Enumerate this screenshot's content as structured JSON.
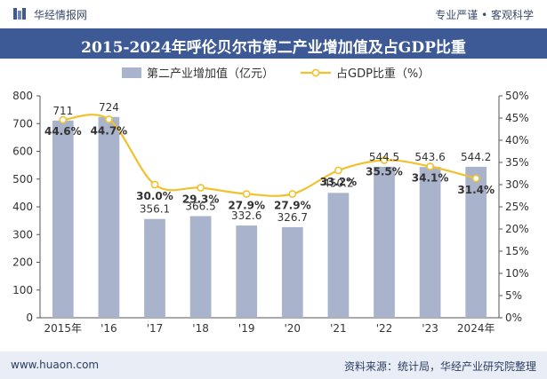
{
  "header": {
    "brand": "华经情报网",
    "slogan": "专业严谨 • 客观科学"
  },
  "footer": {
    "site": "www.huaon.com",
    "source": "资料来源：统计局，华经产业研究院整理"
  },
  "colors": {
    "bar": "#a9b4cc",
    "line": "#f2c12e",
    "title_bg": "#3d5a96",
    "footer_bg": "#e9edf5"
  },
  "chart_data": {
    "type": "bar",
    "title": "2015-2024年呼伦贝尔市第二产业增加值及占GDP比重",
    "categories": [
      "2015年",
      "'16",
      "'17",
      "'18",
      "'19",
      "'20",
      "'21",
      "'22",
      "'23",
      "2024年"
    ],
    "series": [
      {
        "name": "第二产业增加值（亿元）",
        "type": "bar",
        "axis": "left",
        "values": [
          711,
          724,
          356.1,
          366.5,
          332.6,
          326.7,
          450.2,
          544.5,
          543.6,
          544.2
        ],
        "labels": [
          "711",
          "724",
          "356.1",
          "366.5",
          "332.6",
          "326.7",
          "450.2",
          "544.5",
          "543.6",
          "544.2"
        ]
      },
      {
        "name": "占GDP比重（%）",
        "type": "line",
        "axis": "right",
        "values": [
          44.6,
          44.7,
          30.0,
          29.3,
          27.9,
          27.9,
          33.2,
          35.5,
          34.1,
          31.4
        ],
        "labels": [
          "44.6%",
          "44.7%",
          "30.0%",
          "29.3%",
          "27.9%",
          "27.9%",
          "33.2%",
          "35.5%",
          "34.1%",
          "31.4%"
        ]
      }
    ],
    "y_left": {
      "ylim": [
        0,
        800
      ],
      "ticks": [
        "0",
        "100",
        "200",
        "300",
        "400",
        "500",
        "600",
        "700",
        "800"
      ]
    },
    "y_right": {
      "ylim": [
        0,
        50
      ],
      "ticks": [
        "0%",
        "5%",
        "10%",
        "15%",
        "20%",
        "25%",
        "30%",
        "35%",
        "40%",
        "45%",
        "50%"
      ]
    },
    "legend_position": "top-center",
    "grid": false
  }
}
